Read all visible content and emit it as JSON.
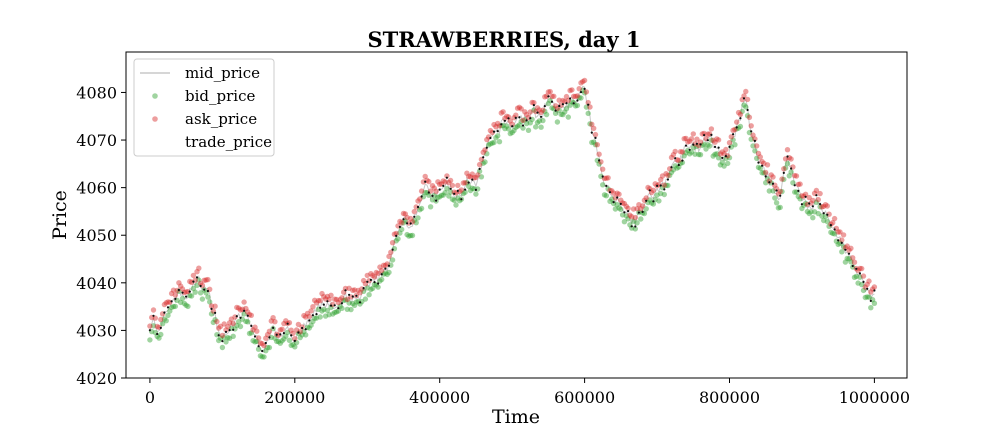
{
  "chart_data": {
    "type": "scatter",
    "title": "STRAWBERRIES, day 1",
    "xlabel": "Time",
    "ylabel": "Price",
    "xlim": [
      -33000,
      1045000
    ],
    "ylim": [
      4020,
      4088.5
    ],
    "xticks": [
      0,
      200000,
      400000,
      600000,
      800000,
      1000000
    ],
    "xtick_labels": [
      "0",
      "200000",
      "400000",
      "600000",
      "800000",
      "1000000"
    ],
    "yticks": [
      4020,
      4030,
      4040,
      4050,
      4060,
      4070,
      4080
    ],
    "ytick_labels": [
      "4020",
      "4030",
      "4040",
      "4050",
      "4060",
      "4070",
      "4080"
    ],
    "grid": false,
    "legend_position": "upper-left",
    "mid_path": {
      "x": [
        0,
        5000,
        10000,
        15000,
        20000,
        30000,
        40000,
        50000,
        60000,
        65000,
        70000,
        80000,
        90000,
        95000,
        100000,
        105000,
        110000,
        120000,
        130000,
        140000,
        150000,
        155000,
        160000,
        170000,
        180000,
        190000,
        200000,
        210000,
        220000,
        230000,
        240000,
        250000,
        260000,
        270000,
        280000,
        290000,
        300000,
        310000,
        320000,
        330000,
        340000,
        350000,
        360000,
        370000,
        380000,
        390000,
        400000,
        410000,
        420000,
        430000,
        440000,
        450000,
        460000,
        470000,
        480000,
        490000,
        500000,
        510000,
        520000,
        530000,
        540000,
        550000,
        560000,
        570000,
        580000,
        590000,
        600000,
        605000,
        610000,
        620000,
        630000,
        640000,
        650000,
        660000,
        670000,
        680000,
        690000,
        700000,
        710000,
        720000,
        730000,
        740000,
        750000,
        760000,
        770000,
        780000,
        790000,
        800000,
        805000,
        810000,
        815000,
        820000,
        825000,
        830000,
        840000,
        850000,
        860000,
        870000,
        880000,
        890000,
        900000,
        910000,
        920000,
        930000,
        940000,
        950000,
        960000,
        970000,
        980000,
        990000,
        1000000
      ],
      "mid": [
        4031,
        4033,
        4029,
        4030,
        4033,
        4036,
        4038,
        4037,
        4039,
        4041,
        4040,
        4038,
        4033,
        4030,
        4028,
        4029,
        4031,
        4032,
        4034,
        4031,
        4027,
        4025,
        4028,
        4030,
        4029,
        4031,
        4028,
        4030,
        4032,
        4034,
        4036,
        4035,
        4034,
        4037,
        4036,
        4037,
        4039,
        4040,
        4042,
        4044,
        4049,
        4054,
        4052,
        4056,
        4060,
        4058,
        4059,
        4061,
        4058,
        4059,
        4062,
        4060,
        4066,
        4070,
        4072,
        4074,
        4073,
        4075,
        4074,
        4076,
        4075,
        4079,
        4076,
        4077,
        4078,
        4079,
        4081,
        4076,
        4072,
        4066,
        4060,
        4058,
        4057,
        4054,
        4053,
        4056,
        4058,
        4059,
        4061,
        4064,
        4066,
        4068,
        4069,
        4068,
        4071,
        4069,
        4066,
        4067,
        4070,
        4072,
        4075,
        4079,
        4076,
        4071,
        4066,
        4063,
        4060,
        4058,
        4067,
        4061,
        4058,
        4056,
        4057,
        4055,
        4052,
        4050,
        4047,
        4044,
        4041,
        4038,
        4037
      ]
    },
    "series": [
      {
        "name": "mid_price",
        "color": "#c8c8c8",
        "style": "line"
      },
      {
        "name": "bid_price",
        "color": "#2ca02c",
        "style": "points",
        "offset": -0.8
      },
      {
        "name": "ask_price",
        "color": "#d62728",
        "style": "points",
        "offset": 0.8
      },
      {
        "name": "trade_price",
        "color": "#111111",
        "style": "dots"
      }
    ]
  }
}
